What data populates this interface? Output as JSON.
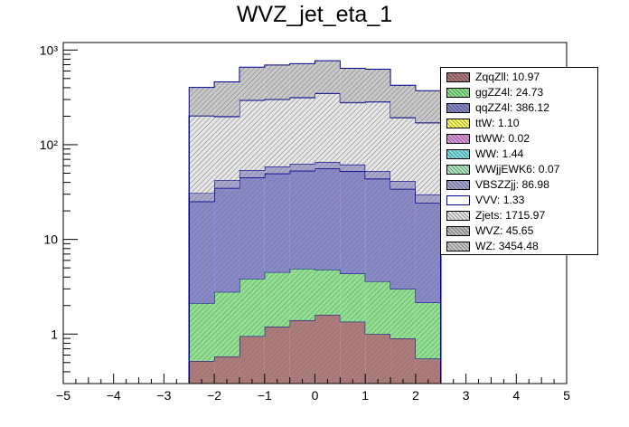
{
  "title": "WVZ_jet_eta_1",
  "chart_data": {
    "type": "bar",
    "stacked": true,
    "y_scale": "log",
    "title": "WVZ_jet_eta_1",
    "xlabel": "",
    "ylabel": "",
    "xlim": [
      -5,
      5
    ],
    "ylim": [
      0.3,
      1200
    ],
    "x_ticks": [
      -5,
      -4,
      -3,
      -2,
      -1,
      0,
      1,
      2,
      3,
      4,
      5
    ],
    "x_tick_labels": [
      "−5",
      "−4",
      "−3",
      "−2",
      "−1",
      "0",
      "1",
      "2",
      "3",
      "4",
      "5"
    ],
    "y_ticks": [
      1,
      10,
      100,
      1000
    ],
    "y_tick_labels": [
      "1",
      "10",
      "10²",
      "10³"
    ],
    "bin_edges": [
      -2.5,
      -2.0,
      -1.5,
      -1.0,
      -0.5,
      0.0,
      0.5,
      1.0,
      1.5,
      2.0,
      2.5
    ],
    "series": [
      {
        "name": "ZqqZll",
        "legend": "ZqqZll: 10.97",
        "color": "#b07a7a",
        "values": [
          0.52,
          0.58,
          0.95,
          1.2,
          1.4,
          1.6,
          1.35,
          1.0,
          0.9,
          0.55
        ]
      },
      {
        "name": "ggZZ4l",
        "legend": "ggZZ4l: 24.73",
        "color": "#8ee38e",
        "values": [
          1.6,
          2.2,
          2.9,
          3.3,
          3.5,
          3.2,
          3.0,
          2.6,
          2.1,
          1.6
        ]
      },
      {
        "name": "qqZZ4l",
        "legend": "qqZZ4l: 386.12",
        "color": "#8888cc",
        "values": [
          23,
          32,
          41,
          45,
          48,
          51,
          48,
          40,
          31,
          22
        ]
      },
      {
        "name": "ttW",
        "legend": "ttW: 1.10",
        "color": "#ffff66",
        "values": [
          0.05,
          0.08,
          0.1,
          0.12,
          0.12,
          0.13,
          0.12,
          0.11,
          0.09,
          0.06
        ]
      },
      {
        "name": "ttWW",
        "legend": "ttWW: 0.02",
        "color": "#dd99dd",
        "values": [
          0.001,
          0.001,
          0.002,
          0.002,
          0.003,
          0.003,
          0.002,
          0.002,
          0.001,
          0.001
        ]
      },
      {
        "name": "WW",
        "legend": "WW: 1.44",
        "color": "#7fe0e8",
        "values": [
          0.07,
          0.1,
          0.13,
          0.16,
          0.18,
          0.18,
          0.16,
          0.14,
          0.1,
          0.07
        ]
      },
      {
        "name": "WWjjEWK6",
        "legend": "WWjjEWK6: 0.07",
        "color": "#b0e8c0",
        "values": [
          0.004,
          0.005,
          0.007,
          0.008,
          0.009,
          0.009,
          0.008,
          0.007,
          0.005,
          0.004
        ]
      },
      {
        "name": "VBSZZjj",
        "legend": "VBSZZjj: 86.98",
        "color": "#a7a7cf",
        "values": [
          5.5,
          7.0,
          8.5,
          9.0,
          9.5,
          9.5,
          9.0,
          8.5,
          7.0,
          5.5
        ]
      },
      {
        "name": "VVV",
        "legend": "VVV: 1.33",
        "color": "#ffffff",
        "values": [
          0.06,
          0.08,
          0.12,
          0.15,
          0.17,
          0.18,
          0.16,
          0.13,
          0.09,
          0.06
        ]
      },
      {
        "name": "Zjets",
        "legend": "Zjets: 1715.97",
        "color": "#e6e6e6",
        "values": [
          170,
          155,
          240,
          240,
          250,
          280,
          215,
          230,
          150,
          140
        ]
      },
      {
        "name": "WVZ",
        "legend": "WVZ: 45.65",
        "color": "#bdbdbd",
        "values": [
          2.5,
          3.5,
          4.5,
          5.0,
          5.2,
          5.5,
          5.0,
          4.5,
          3.5,
          2.5
        ]
      },
      {
        "name": "WZ",
        "legend": "WZ: 3454.48",
        "color": "#c8c8c8",
        "values": [
          200,
          260,
          360,
          390,
          400,
          420,
          360,
          340,
          230,
          200
        ]
      }
    ]
  }
}
